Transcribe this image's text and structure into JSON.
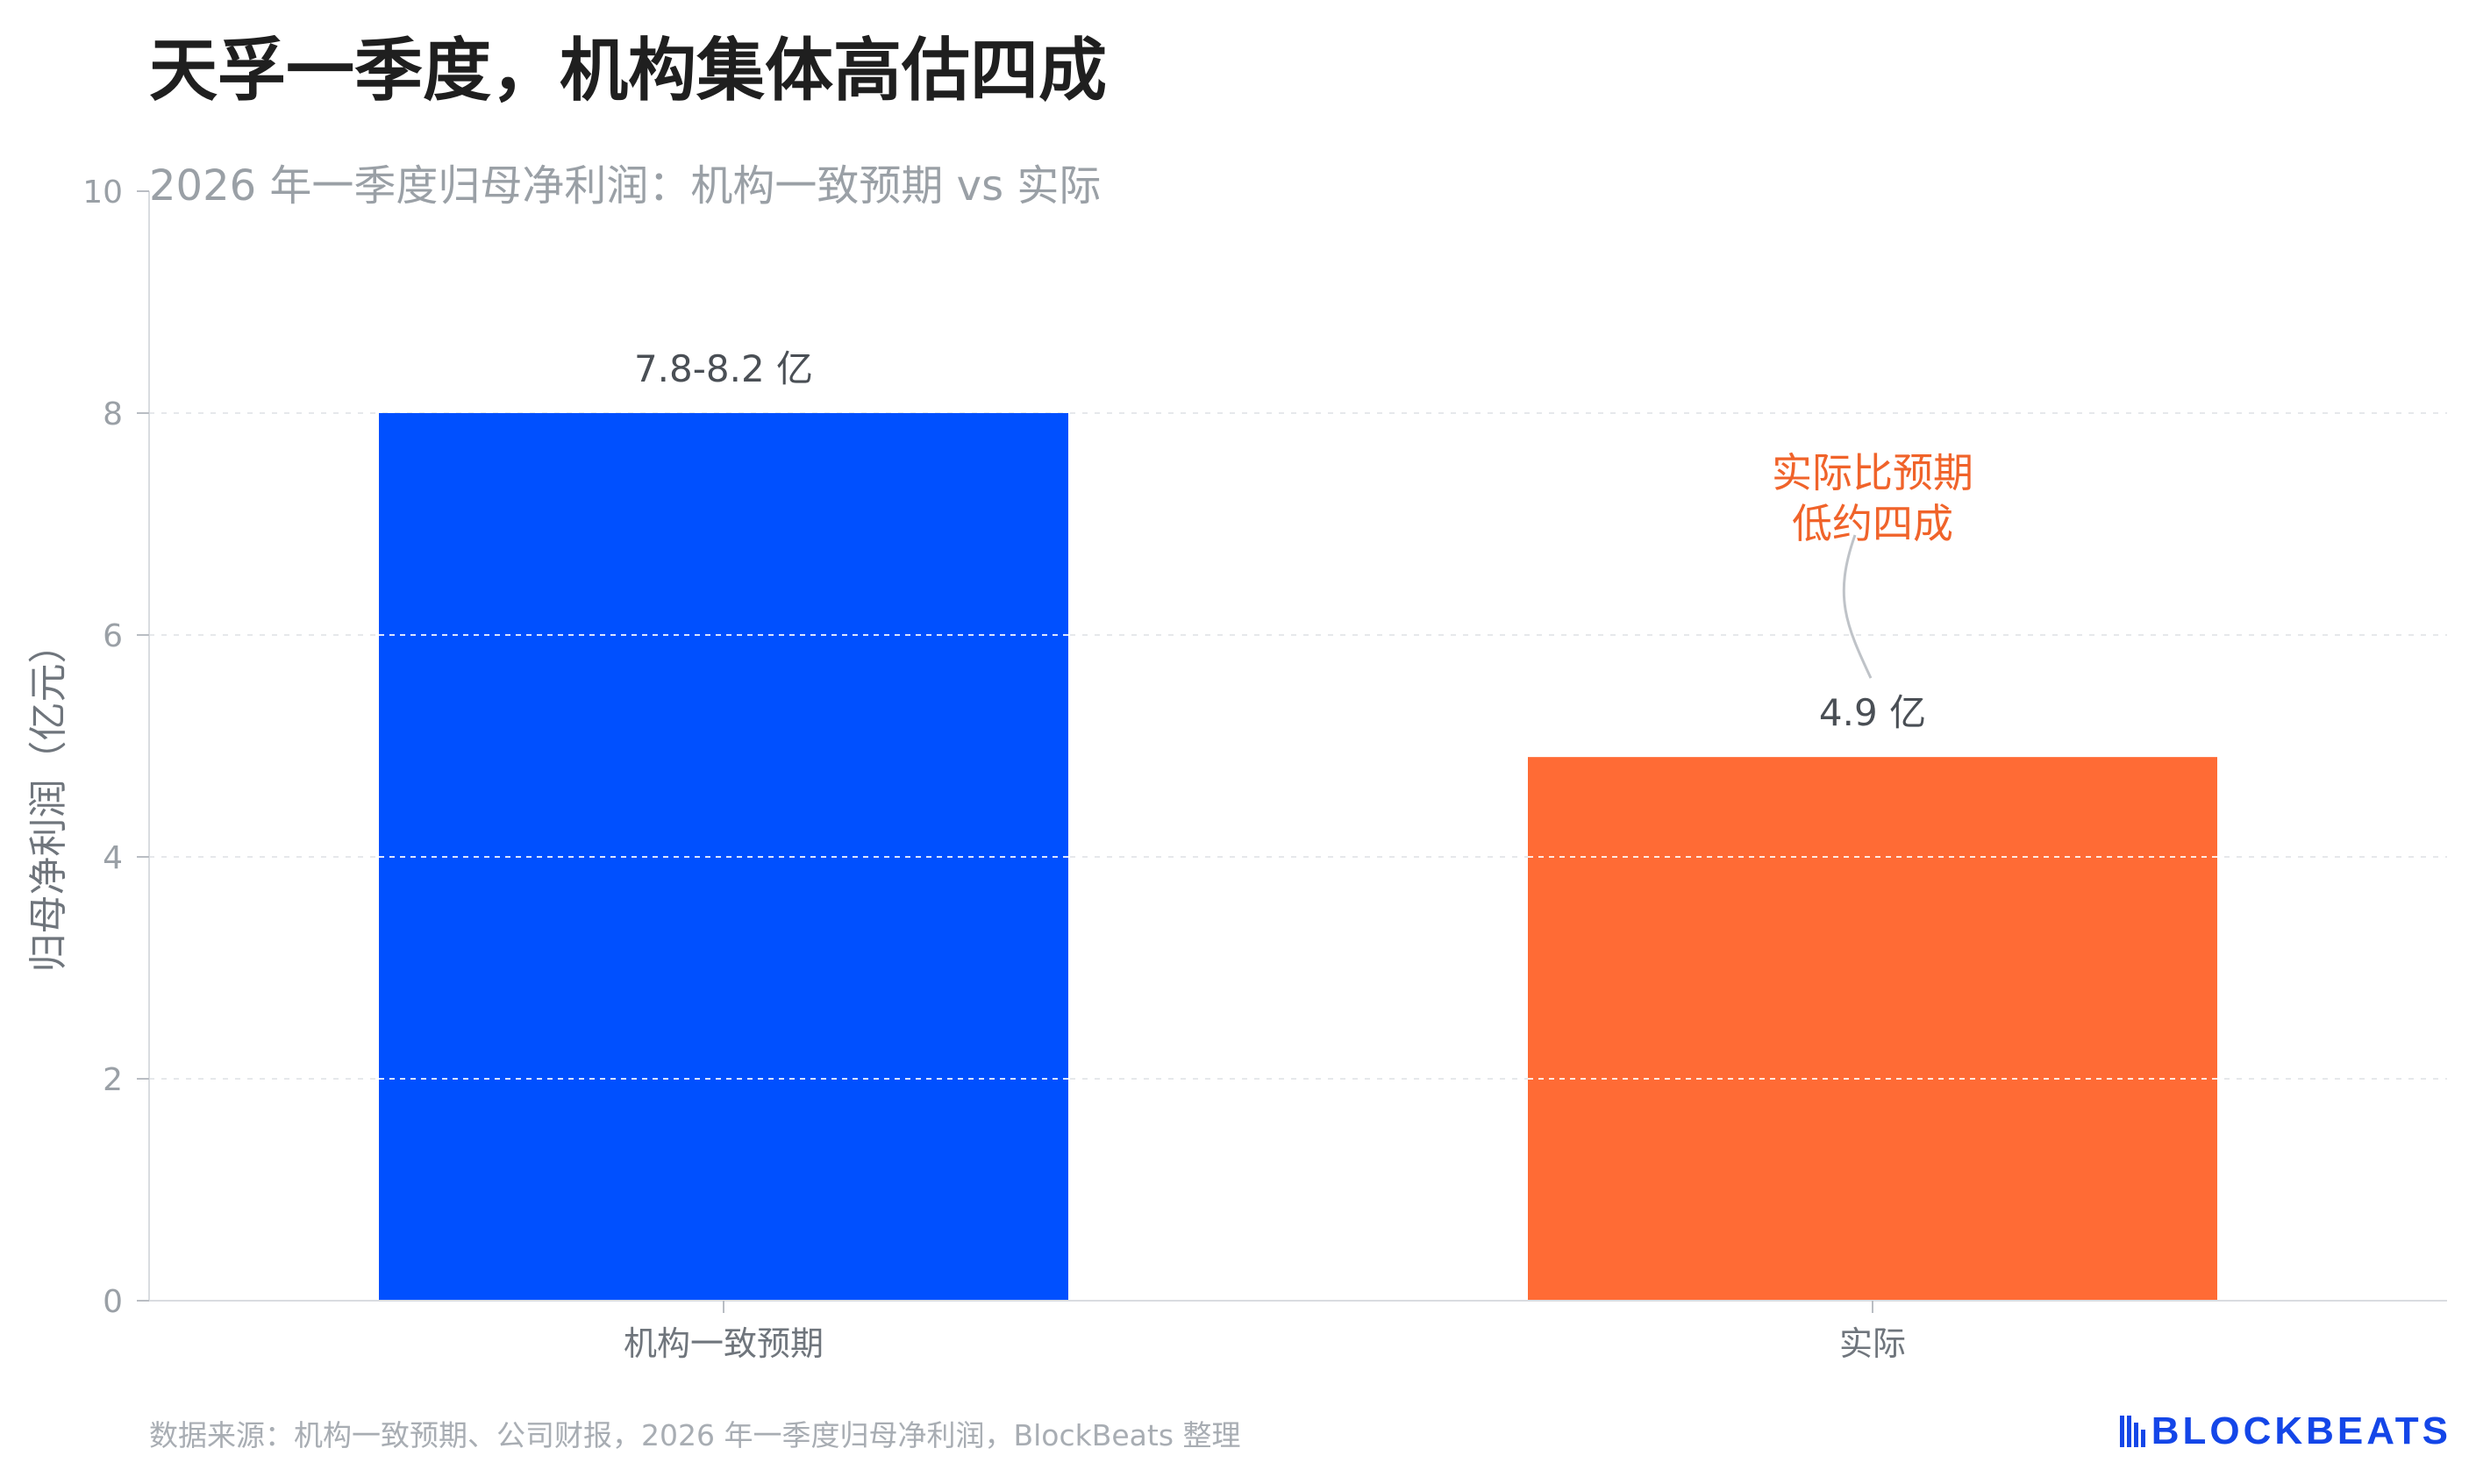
{
  "title": "天孚一季度，机构集体高估四成",
  "subtitle": "2026 年一季度归母净利润：机构一致预期 vs 实际",
  "source": "数据来源：机构一致预期、公司财报，2026 年一季度归母净利润，BlockBeats 整理",
  "brand": {
    "name": "BLOCKBEATS",
    "color": "#1446e8",
    "icon": "bars-logo-icon"
  },
  "annotation": {
    "lines": [
      "实际比预期",
      "低约四成"
    ],
    "color": "#f0632a",
    "target_category": "实际"
  },
  "chart_data": {
    "type": "bar",
    "categories": [
      "机构一致预期",
      "实际"
    ],
    "values": [
      8.0,
      4.9
    ],
    "data_labels": [
      "7.8-8.2 亿",
      "4.9 亿"
    ],
    "colors": [
      "#0050ff",
      "#ff6b35"
    ],
    "ylabel": "归母净利润（亿元）",
    "ylim": [
      0,
      10
    ],
    "yticks": [
      0,
      2,
      4,
      6,
      8,
      10
    ],
    "grid": true
  }
}
